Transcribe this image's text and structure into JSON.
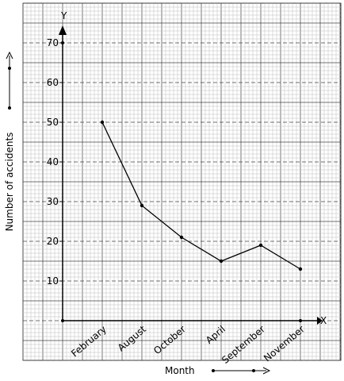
{
  "chart_data": {
    "type": "line",
    "categories": [
      "February",
      "August",
      "October",
      "April",
      "September",
      "November"
    ],
    "values": [
      50,
      29,
      21,
      15,
      19,
      13
    ],
    "y_ticks": [
      10,
      20,
      30,
      40,
      50,
      60,
      70
    ],
    "ylim": [
      0,
      70
    ],
    "xlabel": "Month",
    "ylabel": "Number of accidents",
    "x_axis_letter": "X",
    "y_axis_letter": "Y",
    "grid": true
  }
}
